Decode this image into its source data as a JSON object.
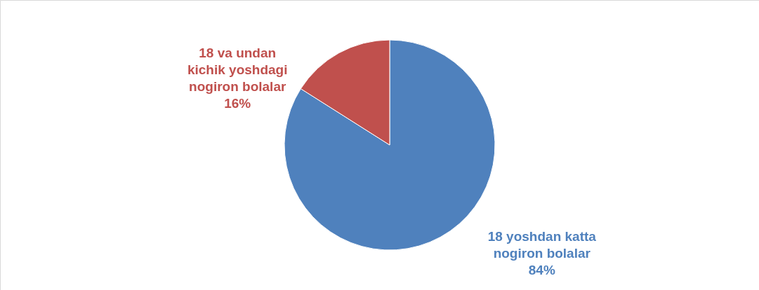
{
  "chart_data": {
    "type": "pie",
    "categories": [
      "18 yoshdan katta nogiron bolalar",
      "18 va undan kichik yoshdagi nogiron bolalar"
    ],
    "values": [
      84,
      16
    ],
    "colors": [
      "#4f81bd",
      "#c0504d"
    ],
    "value_labels": [
      "84%",
      "16%"
    ]
  }
}
